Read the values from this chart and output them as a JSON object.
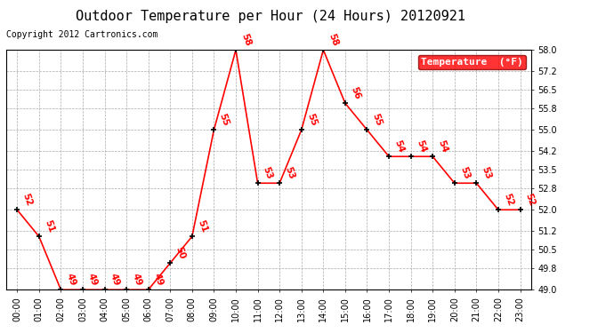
{
  "title": "Outdoor Temperature per Hour (24 Hours) 20120921",
  "copyright": "Copyright 2012 Cartronics.com",
  "legend_label": "Temperature  (°F)",
  "hours": [
    "00:00",
    "01:00",
    "02:00",
    "03:00",
    "04:00",
    "05:00",
    "06:00",
    "07:00",
    "08:00",
    "09:00",
    "10:00",
    "11:00",
    "12:00",
    "13:00",
    "14:00",
    "15:00",
    "16:00",
    "17:00",
    "18:00",
    "19:00",
    "20:00",
    "21:00",
    "22:00",
    "23:00"
  ],
  "temperatures": [
    52,
    51,
    49,
    49,
    49,
    49,
    49,
    50,
    51,
    55,
    58,
    53,
    53,
    55,
    58,
    56,
    55,
    54,
    54,
    54,
    53,
    53,
    52,
    52
  ],
  "ylim": [
    49.0,
    58.0
  ],
  "yticks": [
    49.0,
    49.8,
    50.5,
    51.2,
    52.0,
    52.8,
    53.5,
    54.2,
    55.0,
    55.8,
    56.5,
    57.2,
    58.0
  ],
  "line_color": "red",
  "marker_color": "black",
  "bg_color": "white",
  "grid_color": "#aaaaaa",
  "title_color": "black",
  "legend_bg": "red",
  "legend_text_color": "white",
  "label_color": "red",
  "copyright_color": "black",
  "title_fontsize": 11,
  "tick_fontsize": 7,
  "label_fontsize": 7.5,
  "copyright_fontsize": 7
}
